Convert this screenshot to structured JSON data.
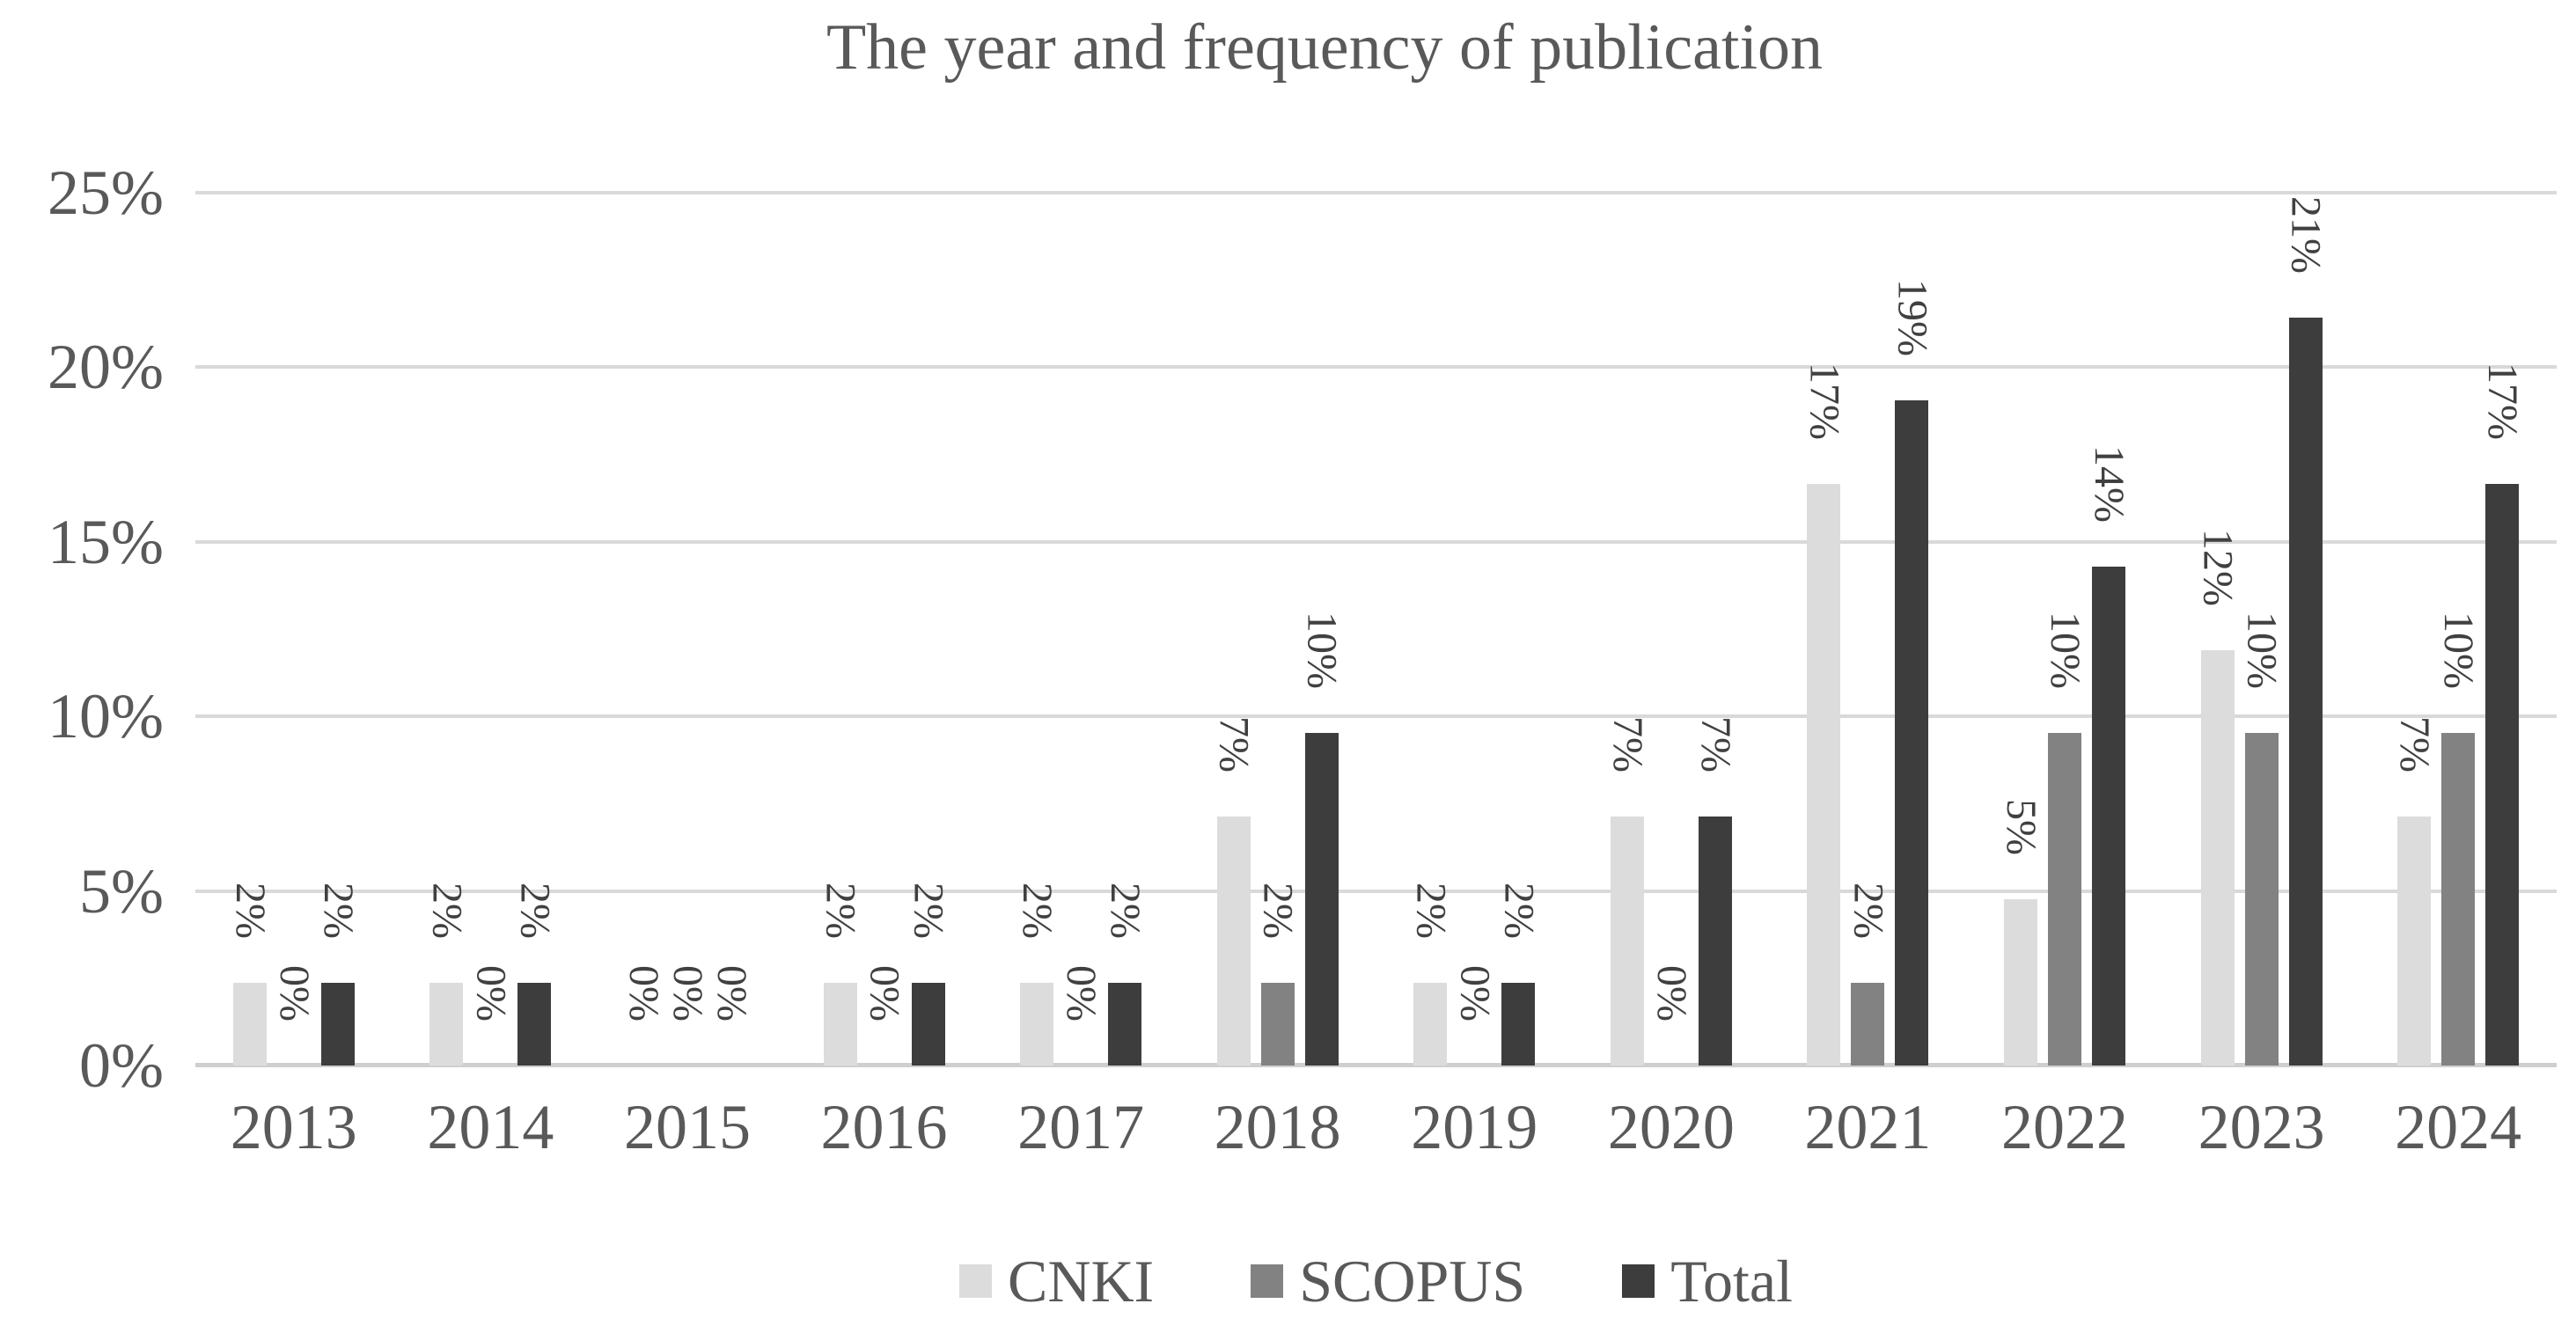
{
  "chart_data": {
    "type": "bar",
    "title": "The year and frequency of publication",
    "categories": [
      "2013",
      "2014",
      "2015",
      "2016",
      "2017",
      "2018",
      "2019",
      "2020",
      "2021",
      "2022",
      "2023",
      "2024"
    ],
    "series": [
      {
        "name": "CNKI",
        "color": "#dcdcdc",
        "values": [
          2.38,
          2.38,
          0,
          2.38,
          2.38,
          7.14,
          2.38,
          7.14,
          16.67,
          4.76,
          11.9,
          7.14
        ],
        "labels": [
          "2%",
          "2%",
          "0%",
          "2%",
          "2%",
          "7%",
          "2%",
          "7%",
          "17%",
          "5%",
          "12%",
          "7%"
        ]
      },
      {
        "name": "SCOPUS",
        "color": "#828282",
        "values": [
          0,
          0,
          0,
          0,
          0,
          2.38,
          0,
          0,
          2.38,
          9.52,
          9.52,
          9.52
        ],
        "labels": [
          "0%",
          "0%",
          "0%",
          "0%",
          "0%",
          "2%",
          "0%",
          "0%",
          "2%",
          "10%",
          "10%",
          "10%"
        ]
      },
      {
        "name": "Total",
        "color": "#3d3d3d",
        "values": [
          2.38,
          2.38,
          0,
          2.38,
          2.38,
          9.52,
          2.38,
          7.14,
          19.05,
          14.29,
          21.43,
          16.67
        ],
        "labels": [
          "2%",
          "2%",
          "0%",
          "2%",
          "2%",
          "10%",
          "2%",
          "7%",
          "19%",
          "14%",
          "21%",
          "17%"
        ]
      }
    ],
    "y_axis": {
      "min": 0,
      "max": 25,
      "tick_step": 5,
      "tick_labels": [
        "0%",
        "5%",
        "10%",
        "15%",
        "20%",
        "25%"
      ],
      "grid": true
    },
    "legend": {
      "position": "bottom",
      "entries": [
        "CNKI",
        "SCOPUS",
        "Total"
      ]
    },
    "style": {
      "data_label_rotation": "90deg-clockwise",
      "text_color": "#595959",
      "data_label_color": "#404040",
      "gridline_color": "#d9d9d9",
      "background": "#ffffff"
    }
  }
}
